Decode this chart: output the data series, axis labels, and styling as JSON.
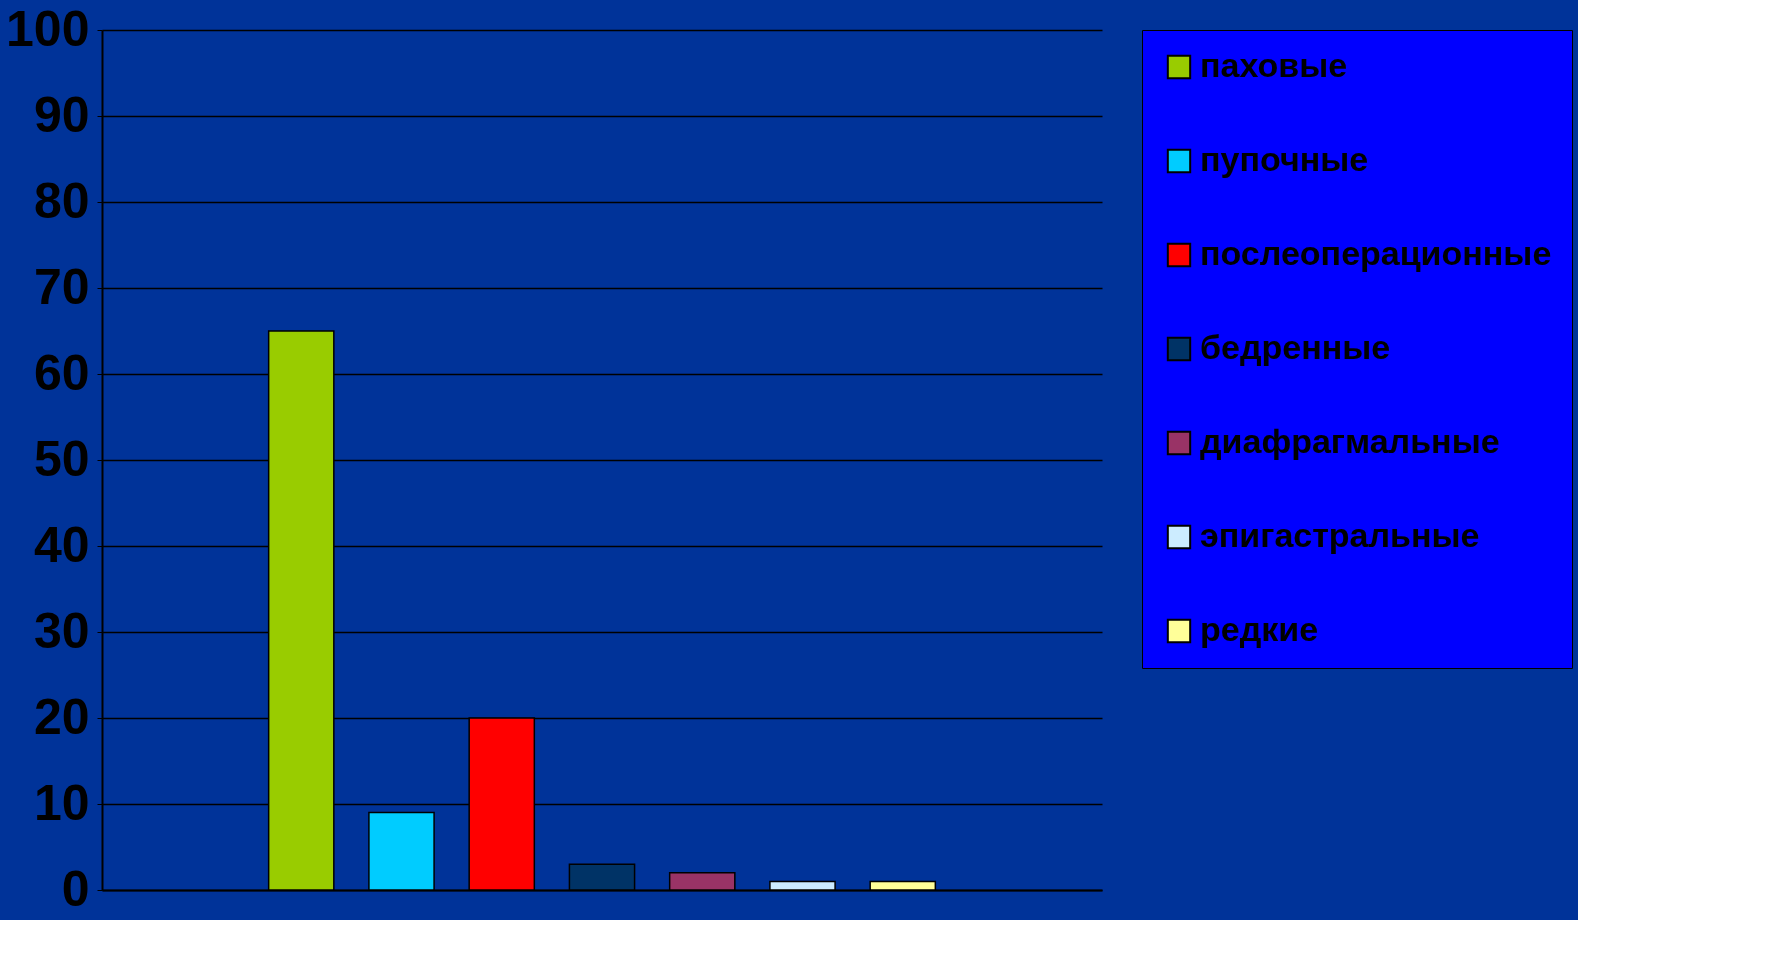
{
  "chart_data": {
    "type": "bar",
    "categories": [
      null
    ],
    "series": [
      {
        "name": "паховые",
        "color": "#99cc00",
        "values": [
          65
        ]
      },
      {
        "name": "пупочные",
        "color": "#00ccff",
        "values": [
          9
        ]
      },
      {
        "name": "послеоперационные",
        "color": "#ff0000",
        "values": [
          20
        ]
      },
      {
        "name": "бедренные",
        "color": "#003366",
        "values": [
          3
        ]
      },
      {
        "name": "диафрагмальные",
        "color": "#993366",
        "values": [
          2
        ]
      },
      {
        "name": "эпигастральные",
        "color": "#ccecff",
        "values": [
          1
        ]
      },
      {
        "name": "редкие",
        "color": "#ffff99",
        "values": [
          1
        ]
      }
    ],
    "ylim": [
      0,
      100
    ],
    "yticks": [
      0,
      10,
      20,
      30,
      40,
      50,
      60,
      70,
      80,
      90,
      100
    ],
    "grid": "y",
    "legend": "right",
    "tick_labels": "y"
  }
}
